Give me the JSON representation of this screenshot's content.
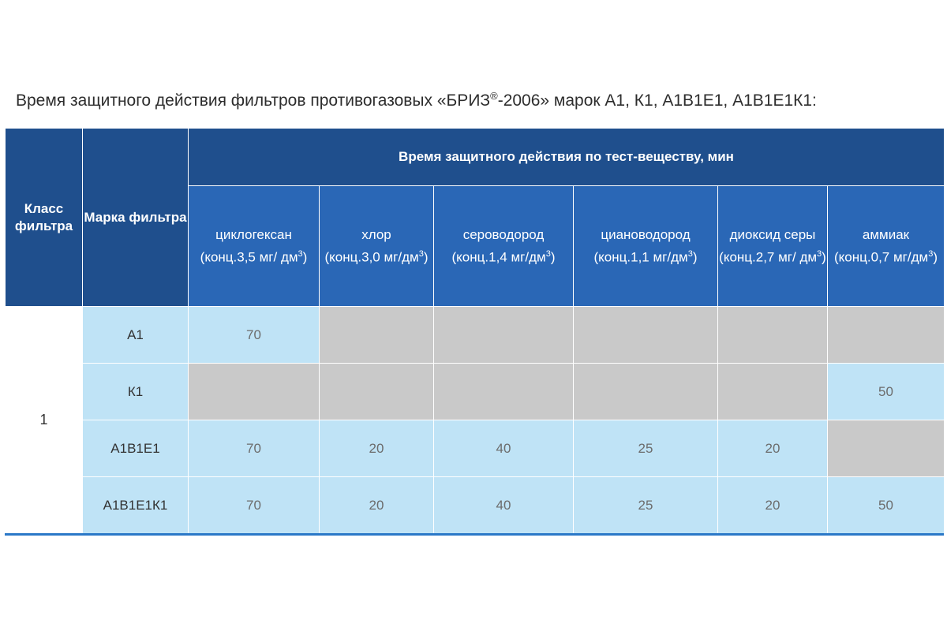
{
  "caption": {
    "before": "Время защитного действия фильтров противогазовых «БРИЗ",
    "reg": "®",
    "after": "-2006» марок А1, К1, А1В1Е1, А1В1Е1К1:"
  },
  "table": {
    "col_class": "Класс фильтра",
    "col_mark": "Марка фильтра",
    "group_header": "Время защитного действия по тест-веществу, мин",
    "substances": [
      {
        "name": "циклогексан",
        "conc": "(конц.3,5 мг/ дм",
        "sup": "3",
        "tail": ")"
      },
      {
        "name": "хлор",
        "conc": "(конц.3,0 мг/дм",
        "sup": "3",
        "tail": ")"
      },
      {
        "name": "сероводород",
        "conc": "(конц.1,4 мг/дм",
        "sup": "3",
        "tail": ")"
      },
      {
        "name": "циановодород",
        "conc": "(конц.1,1 мг/дм",
        "sup": "3",
        "tail": ")"
      },
      {
        "name": "диоксид серы",
        "conc": "(конц.2,7 мг/ дм",
        "sup": "3",
        "tail": ")"
      },
      {
        "name": "аммиак",
        "conc": "(конц.0,7 мг/дм",
        "sup": "3",
        "tail": ")"
      }
    ],
    "class_value": "1",
    "rows": [
      {
        "mark": "А1",
        "values": [
          "70",
          "",
          "",
          "",
          "",
          ""
        ]
      },
      {
        "mark": "К1",
        "values": [
          "",
          "",
          "",
          "",
          "",
          "50"
        ]
      },
      {
        "mark": "А1В1Е1",
        "values": [
          "70",
          "20",
          "40",
          "25",
          "20",
          ""
        ]
      },
      {
        "mark": "А1В1Е1К1",
        "values": [
          "70",
          "20",
          "40",
          "25",
          "20",
          "50"
        ]
      }
    ]
  }
}
